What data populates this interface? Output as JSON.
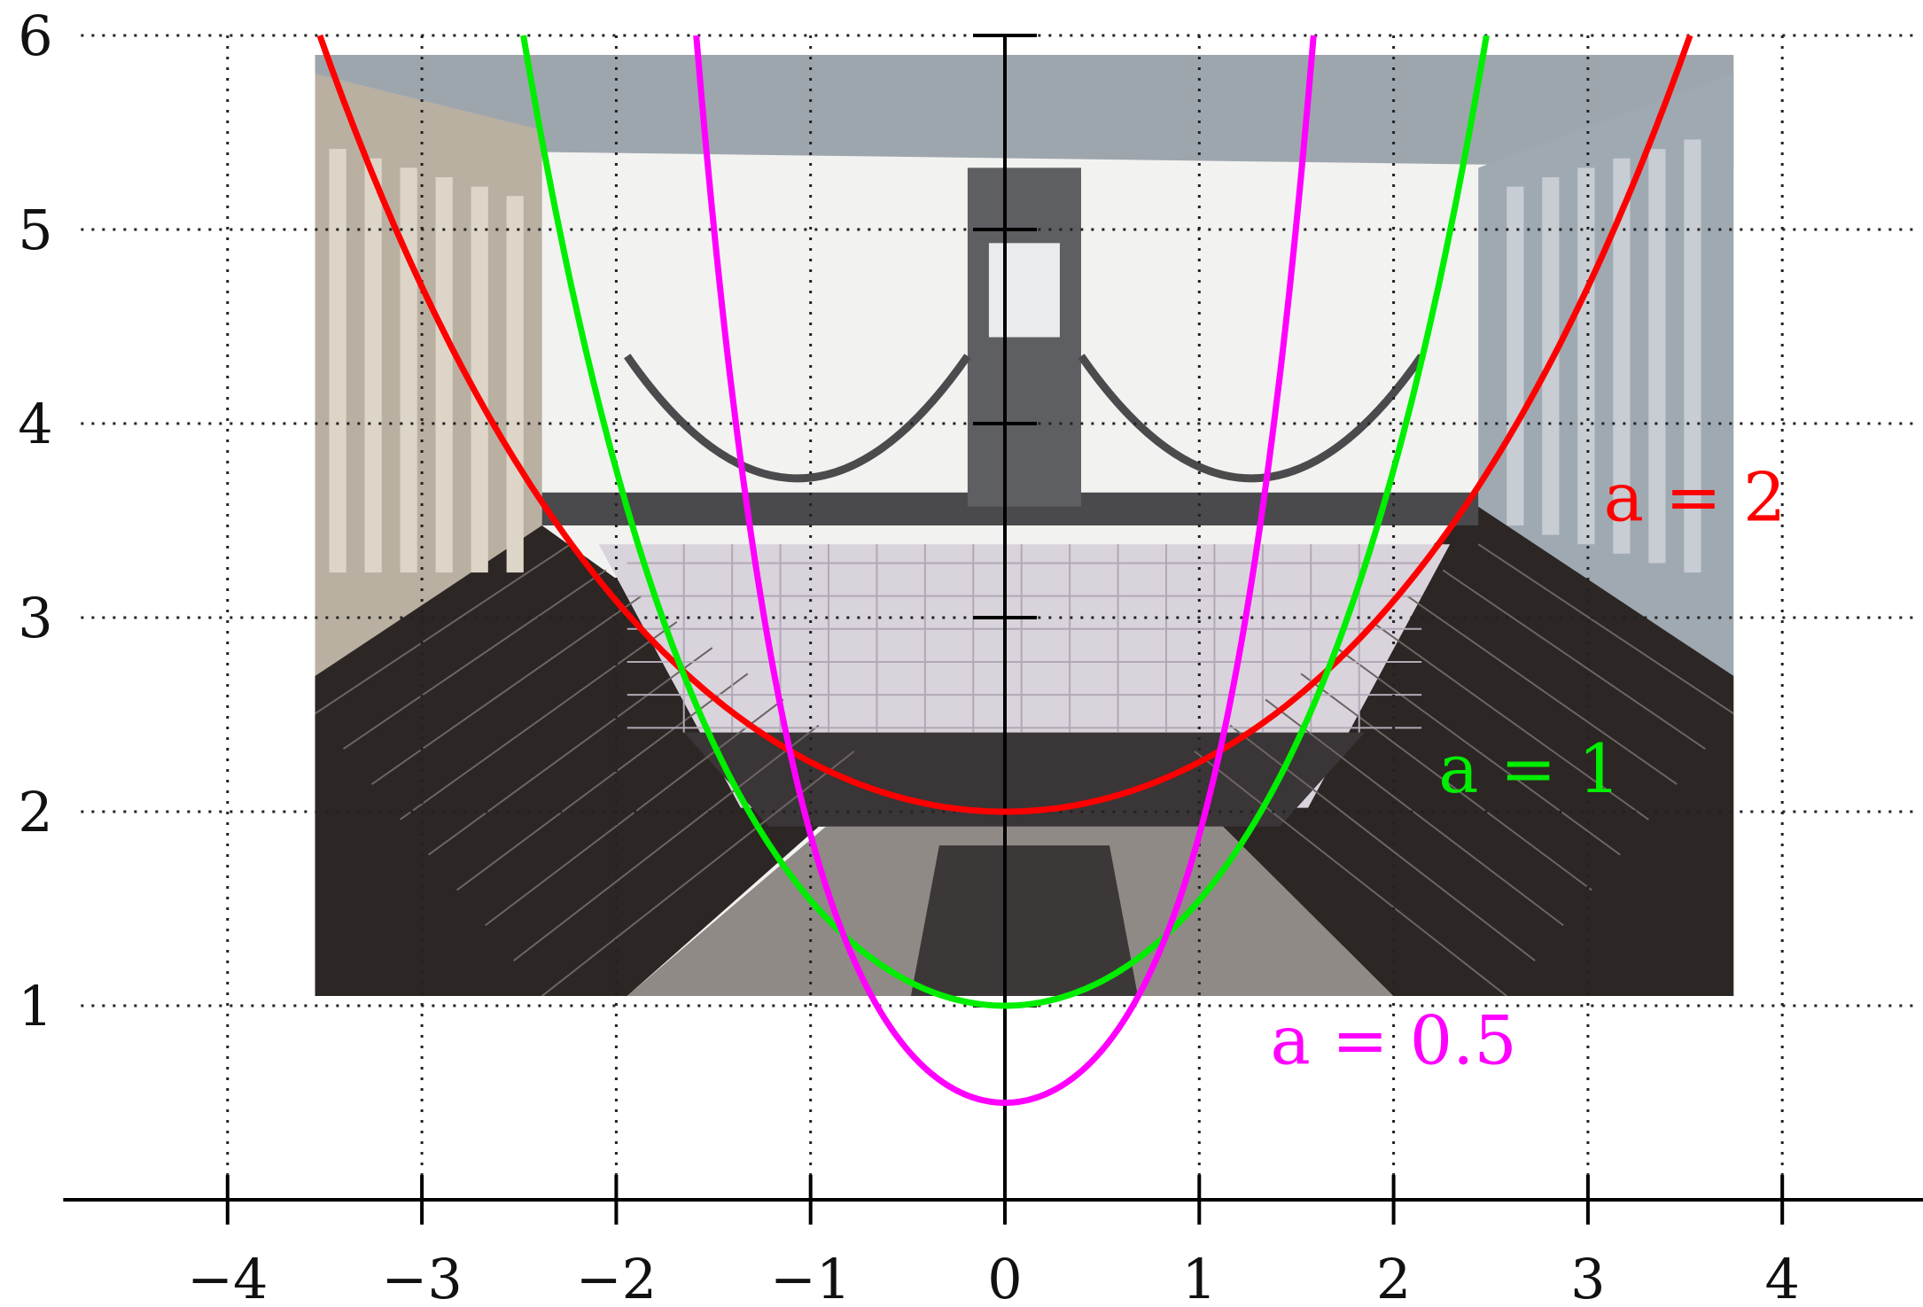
{
  "chart_data": {
    "type": "line",
    "title": "",
    "xlabel": "",
    "ylabel": "",
    "xlim": [
      -4.8,
      4.7
    ],
    "ylim": [
      0,
      6
    ],
    "xticks": [
      -4,
      -3,
      -2,
      -1,
      0,
      1,
      2,
      3,
      4
    ],
    "xtick_labels": [
      "−4",
      "−3",
      "−2",
      "−1",
      "0",
      "1",
      "2",
      "3",
      "4"
    ],
    "yticks": [
      1,
      2,
      3,
      4,
      5,
      6
    ],
    "ytick_labels": [
      "1",
      "2",
      "3",
      "4",
      "5",
      "6"
    ],
    "grid": true,
    "grid_style": "dotted",
    "background_image": "upside-down photograph of an arcade glass-and-iron roof",
    "background_image_extent": {
      "x": [
        -3.55,
        3.75
      ],
      "y": [
        1.05,
        5.9
      ]
    },
    "function": "a*cosh(x/a)",
    "series": [
      {
        "name": "a = 2",
        "a": 2,
        "color": "#ff0000",
        "label_text": "a = 2",
        "label_pos": {
          "x": 3.55,
          "y": 3.5
        }
      },
      {
        "name": "a = 1",
        "a": 1,
        "color": "#00ee00",
        "label_text": "a = 1",
        "label_pos": {
          "x": 2.7,
          "y": 2.1
        }
      },
      {
        "name": "a = 0.5",
        "a": 0.5,
        "color": "#ff00ff",
        "label_text": "a = 0.5",
        "label_pos": {
          "x": 2.0,
          "y": 0.7
        }
      }
    ]
  }
}
